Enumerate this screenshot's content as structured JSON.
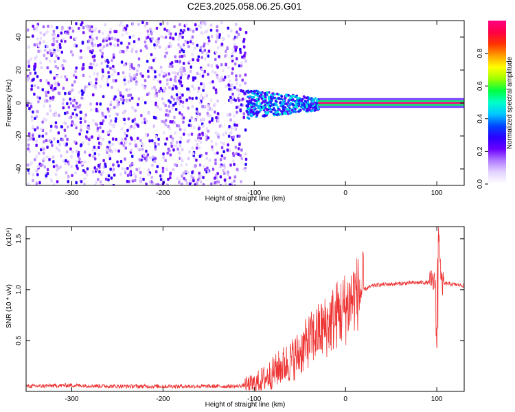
{
  "title": "C2E3.2025.058.06.25.G01",
  "chart_data": [
    {
      "type": "heatmap",
      "xlabel": "Height of straight line (km)",
      "ylabel": "Frequency (Hz)",
      "xlim": [
        -350,
        130
      ],
      "ylim": [
        -50,
        50
      ],
      "x_ticks": [
        "-300",
        "-200",
        "-100",
        "0",
        "100"
      ],
      "y_ticks": [
        "-40",
        "-20",
        "0",
        "20",
        "40"
      ],
      "colorbar": {
        "label": "Normalized spectral amplitude",
        "range": [
          0,
          1
        ],
        "ticks": [
          "0.0",
          "0.2",
          "0.4",
          "0.6",
          "0.8"
        ],
        "colormap": [
          "#ffffff",
          "#e4d5ff",
          "#b27cff",
          "#6a00ff",
          "#2a00ff",
          "#0047ff",
          "#00c8ff",
          "#00ffc8",
          "#00ff40",
          "#9cff00",
          "#ffff00",
          "#ffa000",
          "#ff3300",
          "#ff0044",
          "#ff0080"
        ]
      },
      "regions": [
        {
          "x_range": [
            -350,
            -110
          ],
          "y_range": [
            -50,
            50
          ],
          "amplitude": [
            0.05,
            0.3
          ],
          "pattern": "noise"
        },
        {
          "x_range": [
            -110,
            -30
          ],
          "y_range": [
            -10,
            8
          ],
          "amplitude": [
            0.2,
            0.5
          ],
          "pattern": "spread"
        },
        {
          "x_range": [
            -30,
            130
          ],
          "y_range": [
            -1,
            1
          ],
          "amplitude": [
            0.85,
            1.0
          ],
          "pattern": "carrier line at 0 Hz"
        }
      ]
    },
    {
      "type": "line",
      "xlabel": "Height of straight line (km)",
      "ylabel": "SNR (10 * v/v)",
      "scale_label": "(x10⁴)",
      "xlim": [
        -350,
        130
      ],
      "ylim": [
        0,
        1.62
      ],
      "x_ticks": [
        "-300",
        "-200",
        "-100",
        "0",
        "100"
      ],
      "y_ticks": [
        "0.5",
        "1.0",
        "1.5"
      ],
      "series": [
        {
          "color": "#ee3333",
          "x": [
            -350,
            -300,
            -250,
            -200,
            -150,
            -120,
            -100,
            -90,
            -80,
            -70,
            -60,
            -50,
            -40,
            -30,
            -20,
            -10,
            0,
            10,
            20,
            30,
            40,
            60,
            80,
            90,
            95,
            100,
            102,
            105,
            110,
            120,
            130
          ],
          "y": [
            0.05,
            0.06,
            0.05,
            0.05,
            0.05,
            0.05,
            0.07,
            0.12,
            0.18,
            0.25,
            0.3,
            0.38,
            0.5,
            0.58,
            0.65,
            0.75,
            0.82,
            0.95,
            1.0,
            1.04,
            1.05,
            1.06,
            1.07,
            1.07,
            1.08,
            1.05,
            1.62,
            1.05,
            1.06,
            1.05,
            1.04
          ]
        }
      ]
    }
  ]
}
